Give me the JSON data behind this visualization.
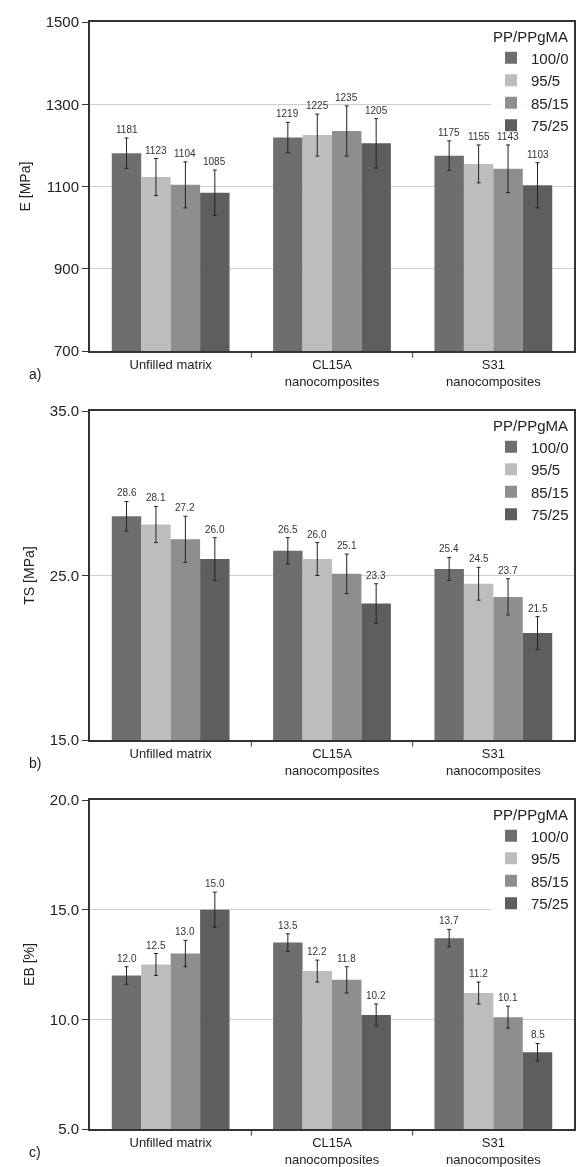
{
  "chart_data": [
    {
      "type": "bar",
      "ylabel": "E [MPa]",
      "legend_title": "PP/PPgMA",
      "annotations": [
        "a)"
      ],
      "categories": [
        "Unfilled matrix",
        "CL15A\nnanocomposites",
        "S31\nnanocomposites"
      ],
      "series": [
        {
          "name": "100/0",
          "color": "#6e6e6e",
          "values": [
            1181,
            1219,
            1175
          ],
          "errors": [
            37,
            37,
            36
          ]
        },
        {
          "name": "95/5",
          "color": "#bdbdbd",
          "values": [
            1123,
            1225,
            1155
          ],
          "errors": [
            45,
            51,
            46
          ]
        },
        {
          "name": "85/15",
          "color": "#8e8e8e",
          "values": [
            1104,
            1235,
            1143
          ],
          "errors": [
            56,
            61,
            58
          ]
        },
        {
          "name": "75/25",
          "color": "#5e5e5e",
          "values": [
            1085,
            1205,
            1103
          ],
          "errors": [
            55,
            60,
            55
          ]
        }
      ],
      "ylim": [
        700,
        1500
      ],
      "yticks": [
        700,
        900,
        1100,
        1300,
        1500
      ],
      "grid": "y",
      "legend": "top right",
      "data_labels": true
    },
    {
      "type": "bar",
      "ylabel": "TS [MPa]",
      "legend_title": "PP/PPgMA",
      "annotations": [
        "b)"
      ],
      "categories": [
        "Unfilled matrix",
        "CL15A\nnanocomposites",
        "S31\nnanocomposites"
      ],
      "series": [
        {
          "name": "100/0",
          "color": "#6e6e6e",
          "values": [
            28.6,
            26.5,
            25.4
          ],
          "errors": [
            0.9,
            0.8,
            0.7
          ],
          "value_labels": [
            "28.6",
            "26.5",
            "25.4"
          ]
        },
        {
          "name": "95/5",
          "color": "#bdbdbd",
          "values": [
            28.1,
            26.0,
            24.5
          ],
          "errors": [
            1.1,
            1.0,
            1.0
          ],
          "value_labels": [
            "28.1",
            "26.0",
            "24.5"
          ]
        },
        {
          "name": "85/15",
          "color": "#8e8e8e",
          "values": [
            27.2,
            25.1,
            23.7
          ],
          "errors": [
            1.4,
            1.2,
            1.1
          ],
          "value_labels": [
            "27.2",
            "25.1",
            "23.7"
          ]
        },
        {
          "name": "75/25",
          "color": "#5e5e5e",
          "values": [
            26.0,
            23.3,
            21.5
          ],
          "errors": [
            1.3,
            1.2,
            1.0
          ],
          "value_labels": [
            "26.0",
            "23.3",
            "21.5"
          ]
        }
      ],
      "ylim": [
        15,
        35
      ],
      "yticks": [
        {
          "value": 15,
          "label": "15.0"
        },
        {
          "value": 25,
          "label": "25.0"
        },
        {
          "value": 35,
          "label": "35.0"
        }
      ],
      "grid": "y",
      "legend": "top right"
    },
    {
      "type": "bar",
      "ylabel": "EB [%]",
      "legend_title": "PP/PPgMA",
      "annotations": [
        "c)"
      ],
      "categories": [
        "Unfilled matrix",
        "CL15A\nnanocomposites",
        "S31\nnanocomposites"
      ],
      "series": [
        {
          "name": "100/0",
          "color": "#6e6e6e",
          "values": [
            12.0,
            13.5,
            13.7
          ],
          "errors": [
            0.4,
            0.4,
            0.4
          ],
          "value_labels": [
            "12.0",
            "13.5",
            "13.7"
          ]
        },
        {
          "name": "95/5",
          "color": "#bdbdbd",
          "values": [
            12.5,
            12.2,
            11.2
          ],
          "errors": [
            0.5,
            0.5,
            0.5
          ],
          "value_labels": [
            "12.5",
            "12.2",
            "11.2"
          ]
        },
        {
          "name": "85/15",
          "color": "#8e8e8e",
          "values": [
            13.0,
            11.8,
            10.1
          ],
          "errors": [
            0.6,
            0.6,
            0.5
          ],
          "value_labels": [
            "13.0",
            "11.8",
            "10.1"
          ]
        },
        {
          "name": "75/25",
          "color": "#5e5e5e",
          "values": [
            15.0,
            10.2,
            8.5
          ],
          "errors": [
            0.8,
            0.5,
            0.4
          ],
          "value_labels": [
            "15.0",
            "10.2",
            "8.5"
          ]
        }
      ],
      "ylim": [
        5,
        20
      ],
      "yticks": [
        {
          "value": 5,
          "label": "5.0"
        },
        {
          "value": 10,
          "label": "10.0"
        },
        {
          "value": 15,
          "label": "15.0"
        },
        {
          "value": 20,
          "label": "20.0"
        }
      ],
      "grid": "y",
      "legend": "top right"
    }
  ]
}
